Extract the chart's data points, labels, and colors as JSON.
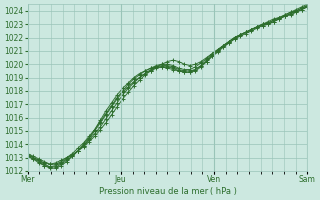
{
  "xlabel": "Pression niveau de la mer ( hPa )",
  "bg_color": "#cce8e0",
  "plot_bg_color": "#cce8e0",
  "grid_color": "#99c4b8",
  "line_color": "#2d6e2d",
  "marker_color": "#2d6e2d",
  "ylim": [
    1012,
    1024.5
  ],
  "yticks": [
    1012,
    1013,
    1014,
    1015,
    1016,
    1017,
    1018,
    1019,
    1020,
    1021,
    1022,
    1023,
    1024
  ],
  "tick_label_color": "#2d6e2d",
  "day_labels": [
    "Mer",
    "Jeu",
    "Ven",
    "Sam"
  ],
  "day_positions": [
    0.0,
    0.333,
    0.667,
    1.0
  ],
  "xlim": [
    0.0,
    1.0
  ],
  "series": [
    {
      "x": [
        0.0,
        0.02,
        0.04,
        0.06,
        0.08,
        0.1,
        0.12,
        0.14,
        0.16,
        0.18,
        0.2,
        0.22,
        0.24,
        0.26,
        0.28,
        0.3,
        0.32,
        0.34,
        0.36,
        0.38,
        0.4,
        0.42,
        0.44,
        0.46,
        0.48,
        0.5,
        0.52,
        0.54,
        0.56,
        0.58,
        0.6,
        0.62,
        0.64,
        0.66,
        0.68,
        0.7,
        0.72,
        0.74,
        0.76,
        0.78,
        0.8,
        0.82,
        0.84,
        0.86,
        0.88,
        0.9,
        0.92,
        0.94,
        0.96,
        0.98,
        1.0
      ],
      "y": [
        1013.2,
        1013.0,
        1012.8,
        1012.6,
        1012.5,
        1012.6,
        1012.8,
        1013.0,
        1013.2,
        1013.5,
        1013.8,
        1014.2,
        1014.6,
        1015.1,
        1015.6,
        1016.2,
        1016.8,
        1017.4,
        1017.9,
        1018.4,
        1018.8,
        1019.2,
        1019.5,
        1019.8,
        1020.0,
        1020.2,
        1020.3,
        1020.2,
        1020.0,
        1019.9,
        1020.0,
        1020.2,
        1020.5,
        1020.8,
        1021.1,
        1021.4,
        1021.7,
        1022.0,
        1022.2,
        1022.4,
        1022.6,
        1022.8,
        1022.9,
        1023.0,
        1023.2,
        1023.4,
        1023.6,
        1023.8,
        1023.9,
        1024.1,
        1024.3
      ]
    },
    {
      "x": [
        0.0,
        0.02,
        0.04,
        0.06,
        0.08,
        0.1,
        0.12,
        0.14,
        0.16,
        0.18,
        0.2,
        0.22,
        0.24,
        0.26,
        0.28,
        0.3,
        0.32,
        0.34,
        0.36,
        0.38,
        0.4,
        0.42,
        0.44,
        0.46,
        0.48,
        0.5,
        0.52,
        0.54,
        0.56,
        0.58,
        0.6,
        0.62,
        0.64,
        0.66,
        0.68,
        0.7,
        0.72,
        0.74,
        0.76,
        0.78,
        0.8,
        0.82,
        0.84,
        0.86,
        0.88,
        0.9,
        0.92,
        0.94,
        0.96,
        0.98,
        1.0
      ],
      "y": [
        1013.1,
        1012.9,
        1012.6,
        1012.4,
        1012.3,
        1012.4,
        1012.6,
        1012.9,
        1013.2,
        1013.5,
        1013.9,
        1014.3,
        1014.8,
        1015.3,
        1015.9,
        1016.5,
        1017.1,
        1017.7,
        1018.2,
        1018.6,
        1019.0,
        1019.3,
        1019.6,
        1019.8,
        1019.9,
        1019.9,
        1019.8,
        1019.6,
        1019.5,
        1019.5,
        1019.6,
        1019.9,
        1020.2,
        1020.6,
        1021.0,
        1021.3,
        1021.6,
        1021.9,
        1022.1,
        1022.3,
        1022.5,
        1022.7,
        1022.9,
        1023.0,
        1023.2,
        1023.4,
        1023.6,
        1023.7,
        1023.9,
        1024.1,
        1024.3
      ]
    },
    {
      "x": [
        0.0,
        0.02,
        0.04,
        0.06,
        0.08,
        0.1,
        0.12,
        0.14,
        0.16,
        0.18,
        0.2,
        0.22,
        0.24,
        0.26,
        0.28,
        0.3,
        0.32,
        0.34,
        0.36,
        0.38,
        0.4,
        0.42,
        0.44,
        0.46,
        0.48,
        0.5,
        0.52,
        0.54,
        0.56,
        0.58,
        0.6,
        0.62,
        0.64,
        0.66,
        0.68,
        0.7,
        0.72,
        0.74,
        0.76,
        0.78,
        0.8,
        0.82,
        0.84,
        0.86,
        0.88,
        0.9,
        0.92,
        0.94,
        0.96,
        0.98,
        1.0
      ],
      "y": [
        1013.3,
        1013.1,
        1012.9,
        1012.7,
        1012.5,
        1012.5,
        1012.7,
        1013.0,
        1013.3,
        1013.7,
        1014.1,
        1014.6,
        1015.1,
        1015.7,
        1016.3,
        1016.9,
        1017.5,
        1018.0,
        1018.5,
        1018.9,
        1019.2,
        1019.5,
        1019.7,
        1019.9,
        1020.0,
        1020.0,
        1019.9,
        1019.7,
        1019.6,
        1019.6,
        1019.8,
        1020.1,
        1020.4,
        1020.8,
        1021.1,
        1021.4,
        1021.7,
        1022.0,
        1022.2,
        1022.4,
        1022.6,
        1022.8,
        1023.0,
        1023.1,
        1023.3,
        1023.5,
        1023.6,
        1023.8,
        1024.0,
        1024.2,
        1024.4
      ]
    },
    {
      "x": [
        0.0,
        0.02,
        0.04,
        0.06,
        0.08,
        0.1,
        0.12,
        0.14,
        0.16,
        0.18,
        0.2,
        0.22,
        0.24,
        0.26,
        0.28,
        0.3,
        0.32,
        0.34,
        0.36,
        0.38,
        0.4,
        0.42,
        0.44,
        0.46,
        0.48,
        0.5,
        0.52,
        0.54,
        0.56,
        0.58,
        0.6,
        0.62,
        0.64,
        0.66,
        0.68,
        0.7,
        0.72,
        0.74,
        0.76,
        0.78,
        0.8,
        0.82,
        0.84,
        0.86,
        0.88,
        0.9,
        0.92,
        0.94,
        0.96,
        0.98,
        1.0
      ],
      "y": [
        1013.2,
        1013.0,
        1012.8,
        1012.5,
        1012.3,
        1012.3,
        1012.5,
        1012.8,
        1013.1,
        1013.5,
        1013.9,
        1014.4,
        1015.0,
        1015.6,
        1016.2,
        1016.8,
        1017.4,
        1017.9,
        1018.3,
        1018.7,
        1019.0,
        1019.3,
        1019.5,
        1019.7,
        1019.8,
        1019.8,
        1019.7,
        1019.5,
        1019.4,
        1019.4,
        1019.5,
        1019.8,
        1020.2,
        1020.6,
        1020.9,
        1021.3,
        1021.6,
        1021.9,
        1022.2,
        1022.4,
        1022.6,
        1022.8,
        1023.0,
        1023.1,
        1023.3,
        1023.5,
        1023.7,
        1023.9,
        1024.0,
        1024.2,
        1024.4
      ]
    },
    {
      "x": [
        0.0,
        0.02,
        0.04,
        0.06,
        0.08,
        0.1,
        0.12,
        0.14,
        0.16,
        0.18,
        0.2,
        0.22,
        0.24,
        0.26,
        0.28,
        0.3,
        0.32,
        0.34,
        0.36,
        0.38,
        0.4,
        0.42,
        0.44,
        0.46,
        0.48,
        0.5,
        0.52,
        0.54,
        0.56,
        0.58,
        0.6,
        0.62,
        0.64,
        0.66,
        0.68,
        0.7,
        0.72,
        0.74,
        0.76,
        0.78,
        0.8,
        0.82,
        0.84,
        0.86,
        0.88,
        0.9,
        0.92,
        0.94,
        0.96,
        0.98,
        1.0
      ],
      "y": [
        1013.1,
        1012.9,
        1012.7,
        1012.4,
        1012.2,
        1012.2,
        1012.4,
        1012.7,
        1013.1,
        1013.5,
        1014.0,
        1014.5,
        1015.1,
        1015.8,
        1016.5,
        1017.1,
        1017.7,
        1018.2,
        1018.6,
        1019.0,
        1019.3,
        1019.5,
        1019.7,
        1019.8,
        1019.8,
        1019.7,
        1019.6,
        1019.5,
        1019.4,
        1019.4,
        1019.6,
        1019.9,
        1020.3,
        1020.7,
        1021.0,
        1021.4,
        1021.7,
        1022.0,
        1022.2,
        1022.4,
        1022.6,
        1022.8,
        1023.0,
        1023.2,
        1023.4,
        1023.5,
        1023.7,
        1023.9,
        1024.1,
        1024.3,
        1024.5
      ]
    }
  ]
}
